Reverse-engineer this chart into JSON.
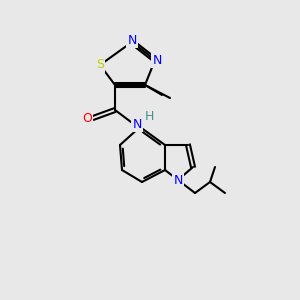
{
  "background_color": "#e8e8e8",
  "figsize": [
    3.0,
    3.0
  ],
  "dpi": 100,
  "atom_colors": {
    "C": "#000000",
    "N": "#0000ff",
    "O": "#ff0000",
    "S": "#cccc00",
    "H": "#4a9090"
  },
  "bond_color": "#000000",
  "bond_width": 1.5,
  "font_size": 9,
  "font_size_small": 8
}
